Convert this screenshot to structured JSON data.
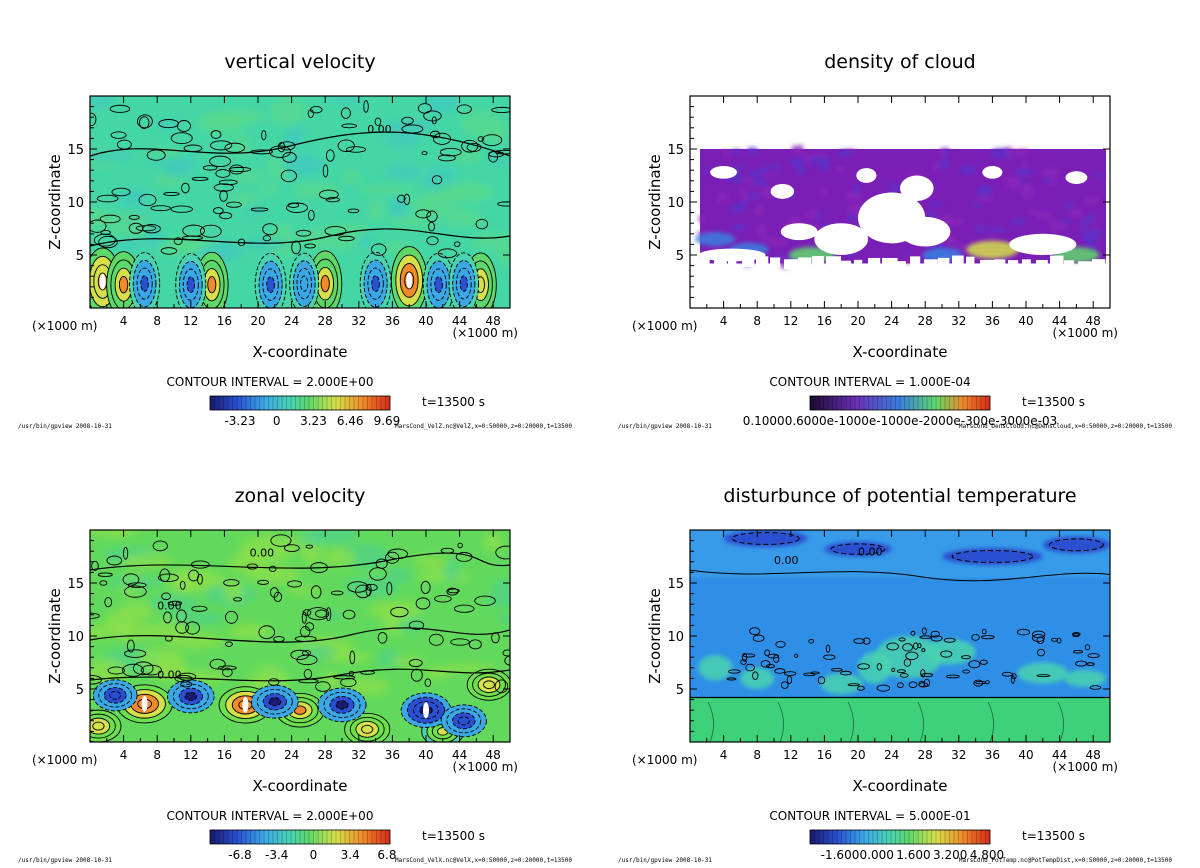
{
  "chart_data": [
    {
      "type": "heatmap",
      "title": "vertical velocity",
      "xlabel": "X-coordinate",
      "ylabel": "Z-coordinate",
      "x_unit_left": "(×1000 m)",
      "x_unit_right": "(×1000 m)",
      "xlim": [
        0,
        50
      ],
      "ylim": [
        0,
        20
      ],
      "x_ticks": [
        "4",
        "8",
        "12",
        "16",
        "20",
        "24",
        "28",
        "32",
        "36",
        "40",
        "44",
        "48"
      ],
      "y_ticks": [
        "5",
        "10",
        "15"
      ],
      "contour_interval": "CONTOUR INTERVAL = 2.000E+00",
      "time": "t=13500 s",
      "colorbar_ticks": [
        "-3.23",
        "0",
        "3.23",
        "6.46",
        "9.69"
      ],
      "contour_labels": [
        "0.00"
      ],
      "footer_left": "/usr/bin/gpview  2008-10-31",
      "footer_right": "MarsCond_VelZ.nc@VelZ,x=0:50000,z=0:20000,t=13500",
      "cmap": [
        "#1a1a6e",
        "#2a4fd0",
        "#3ba8e6",
        "#49d3b0",
        "#5fd86a",
        "#d6e04a",
        "#f08a2a",
        "#d42a1a",
        "#ffffff"
      ],
      "background_color": "#45d6a6",
      "extrema": [
        {
          "x": 1.5,
          "z": 2.5,
          "v": 9.0
        },
        {
          "x": 4.0,
          "z": 2.2,
          "v": 8.0
        },
        {
          "x": 14.5,
          "z": 2.2,
          "v": 7.0
        },
        {
          "x": 28.0,
          "z": 2.3,
          "v": 7.5
        },
        {
          "x": 38.0,
          "z": 2.6,
          "v": 9.5
        },
        {
          "x": 46.5,
          "z": 2.2,
          "v": 6.0
        },
        {
          "x": 6.5,
          "z": 2.3,
          "v": -5.0
        },
        {
          "x": 12.0,
          "z": 2.2,
          "v": -5.0
        },
        {
          "x": 21.5,
          "z": 2.2,
          "v": -5.5
        },
        {
          "x": 25.5,
          "z": 2.3,
          "v": -4.0
        },
        {
          "x": 34.0,
          "z": 2.3,
          "v": -5.5
        },
        {
          "x": 41.5,
          "z": 2.2,
          "v": -5.5
        },
        {
          "x": 44.5,
          "z": 2.3,
          "v": -4.5
        }
      ]
    },
    {
      "type": "heatmap",
      "title": "density of cloud",
      "xlabel": "X-coordinate",
      "ylabel": "Z-coordinate",
      "x_unit_left": "(×1000 m)",
      "x_unit_right": "(×1000 m)",
      "xlim": [
        0,
        50
      ],
      "ylim": [
        0,
        20
      ],
      "x_ticks": [
        "4",
        "8",
        "12",
        "16",
        "20",
        "24",
        "28",
        "32",
        "36",
        "40",
        "44",
        "48"
      ],
      "y_ticks": [
        "5",
        "10",
        "15"
      ],
      "contour_interval": "CONTOUR INTERVAL = 1.000E-04",
      "time": "t=13500 s",
      "colorbar_ticks": [
        "0.10000.6000e-1000e-1000e-2000e-300e-3000e-03"
      ],
      "footer_left": "/usr/bin/gpview  2008-10-31",
      "footer_right": "MarsCond_DensCloud.nc@DensCloud,x=0:50000,z=0:20000,t=13500",
      "cmap": [
        "#7a1fb5",
        "#4a3fcf",
        "#3a7fe0",
        "#49d3b0",
        "#5fd86a",
        "#d6e04a",
        "#f08a2a",
        "#d42a1a",
        "#ffffff"
      ],
      "background_color": "#ffffff",
      "cloud_base_z": 4.2,
      "cloud_top_z": 15.0,
      "dense_patches": [
        {
          "x": 3.0,
          "z": 6.5,
          "v": 2
        },
        {
          "x": 7.0,
          "z": 5.5,
          "v": 2
        },
        {
          "x": 14.5,
          "z": 5.0,
          "v": 3
        },
        {
          "x": 30.0,
          "z": 5.0,
          "v": 2
        },
        {
          "x": 36.0,
          "z": 5.5,
          "v": 4
        },
        {
          "x": 46.0,
          "z": 5.0,
          "v": 3
        }
      ],
      "gaps": [
        {
          "x": 5.0,
          "z": 5.0,
          "rx": 4.0,
          "rz": 0.6
        },
        {
          "x": 13.0,
          "z": 7.2,
          "rx": 2.2,
          "rz": 0.8
        },
        {
          "x": 18.0,
          "z": 6.5,
          "rx": 3.2,
          "rz": 1.5
        },
        {
          "x": 24.0,
          "z": 8.5,
          "rx": 4.0,
          "rz": 2.4
        },
        {
          "x": 28.0,
          "z": 7.2,
          "rx": 3.0,
          "rz": 1.4
        },
        {
          "x": 27.0,
          "z": 11.3,
          "rx": 2.0,
          "rz": 1.2
        },
        {
          "x": 21.0,
          "z": 12.5,
          "rx": 1.2,
          "rz": 0.7
        },
        {
          "x": 36.0,
          "z": 12.8,
          "rx": 1.2,
          "rz": 0.6
        },
        {
          "x": 42.0,
          "z": 6.0,
          "rx": 4.0,
          "rz": 1.0
        },
        {
          "x": 11.0,
          "z": 11.0,
          "rx": 1.4,
          "rz": 0.7
        },
        {
          "x": 4.0,
          "z": 12.8,
          "rx": 1.6,
          "rz": 0.6
        },
        {
          "x": 46.0,
          "z": 12.3,
          "rx": 1.3,
          "rz": 0.6
        }
      ]
    },
    {
      "type": "heatmap",
      "title": "zonal velocity",
      "xlabel": "X-coordinate",
      "ylabel": "Z-coordinate",
      "x_unit_left": "(×1000 m)",
      "x_unit_right": "(×1000 m)",
      "xlim": [
        0,
        50
      ],
      "ylim": [
        0,
        20
      ],
      "x_ticks": [
        "4",
        "8",
        "12",
        "16",
        "20",
        "24",
        "28",
        "32",
        "36",
        "40",
        "44",
        "48"
      ],
      "y_ticks": [
        "5",
        "10",
        "15"
      ],
      "contour_interval": "CONTOUR INTERVAL = 2.000E+00",
      "time": "t=13500 s",
      "colorbar_ticks": [
        "-6.8",
        "-3.4",
        "0",
        "3.4",
        "6.8"
      ],
      "contour_labels": [
        "0.00"
      ],
      "footer_left": "/usr/bin/gpview  2008-10-31",
      "footer_right": "MarsCond_VelX.nc@VelX,x=0:50000,z=0:20000,t=13500",
      "cmap": [
        "#1a1a6e",
        "#2a4fd0",
        "#3ba8e6",
        "#49d3b0",
        "#6ee04e",
        "#d6e04a",
        "#f08a2a",
        "#d42a1a",
        "#ffffff"
      ],
      "background_color": "#62d95c",
      "extrema": [
        {
          "x": 6.5,
          "z": 3.6,
          "v": 8.0
        },
        {
          "x": 18.5,
          "z": 3.5,
          "v": 7.0
        },
        {
          "x": 25.0,
          "z": 3.0,
          "v": 5.5
        },
        {
          "x": 47.5,
          "z": 5.4,
          "v": 4.0
        },
        {
          "x": 1.0,
          "z": 1.5,
          "v": 4.5
        },
        {
          "x": 33.0,
          "z": 1.2,
          "v": 4.5
        },
        {
          "x": 42.0,
          "z": 1.0,
          "v": 3.5
        },
        {
          "x": 12.0,
          "z": 4.3,
          "v": -5.0
        },
        {
          "x": 3.0,
          "z": 4.4,
          "v": -4.0
        },
        {
          "x": 22.0,
          "z": 3.8,
          "v": -5.0
        },
        {
          "x": 30.0,
          "z": 3.5,
          "v": -5.5
        },
        {
          "x": 40.0,
          "z": 3.0,
          "v": -6.0
        },
        {
          "x": 44.5,
          "z": 2.0,
          "v": -4.5
        }
      ]
    },
    {
      "type": "heatmap",
      "title": "disturbunce of potential temperature",
      "xlabel": "X-coordinate",
      "ylabel": "Z-coordinate",
      "x_unit_left": "(×1000 m)",
      "x_unit_right": "(×1000 m)",
      "xlim": [
        0,
        50
      ],
      "ylim": [
        0,
        20
      ],
      "x_ticks": [
        "4",
        "8",
        "12",
        "16",
        "20",
        "24",
        "28",
        "32",
        "36",
        "40",
        "44",
        "48"
      ],
      "y_ticks": [
        "5",
        "10",
        "15"
      ],
      "contour_interval": "CONTOUR INTERVAL = 5.000E-01",
      "time": "t=13500 s",
      "colorbar_ticks": [
        "-1.600",
        "0.000",
        "1.600",
        "3.200",
        "4.800"
      ],
      "contour_labels": [
        "0.00"
      ],
      "footer_left": "/usr/bin/gpview  2008-10-31",
      "footer_right": "MarsCond_PotTemp.nc@PotTempDist,x=0:50000,z=0:20000,t=13500",
      "cmap": [
        "#1a1a6e",
        "#2a4fd0",
        "#3ba8e6",
        "#49d3b0",
        "#5fd86a",
        "#d6e04a",
        "#f08a2a",
        "#d42a1a",
        "#ffffff"
      ],
      "background_color": "#2f8fe6",
      "lower_layer_top_z": 4.2,
      "lower_layer_color": "#3fd07a",
      "upper_band_z": [
        15.5,
        20
      ],
      "warm_blobs": [
        {
          "x": 26.0,
          "z": 8.0,
          "rx": 4.0,
          "rz": 2.0
        },
        {
          "x": 22.0,
          "z": 7.0,
          "rx": 2.0,
          "rz": 1.5
        },
        {
          "x": 31.0,
          "z": 8.5,
          "rx": 3.0,
          "rz": 1.2
        },
        {
          "x": 18.0,
          "z": 5.5,
          "rx": 2.5,
          "rz": 1.0
        },
        {
          "x": 42.0,
          "z": 6.5,
          "rx": 3.0,
          "rz": 1.0
        },
        {
          "x": 47.0,
          "z": 6.0,
          "rx": 2.5,
          "rz": 0.8
        },
        {
          "x": 3.0,
          "z": 7.0,
          "rx": 2.0,
          "rz": 1.2
        },
        {
          "x": 8.0,
          "z": 6.0,
          "rx": 2.0,
          "rz": 1.0
        }
      ],
      "cold_blobs": [
        {
          "x": 9.0,
          "z": 19.2,
          "rx": 5.0,
          "rz": 0.8
        },
        {
          "x": 20.0,
          "z": 18.2,
          "rx": 4.0,
          "rz": 0.7
        },
        {
          "x": 36.0,
          "z": 17.5,
          "rx": 6.0,
          "rz": 0.8
        },
        {
          "x": 46.0,
          "z": 18.6,
          "rx": 4.0,
          "rz": 0.8
        }
      ]
    }
  ]
}
